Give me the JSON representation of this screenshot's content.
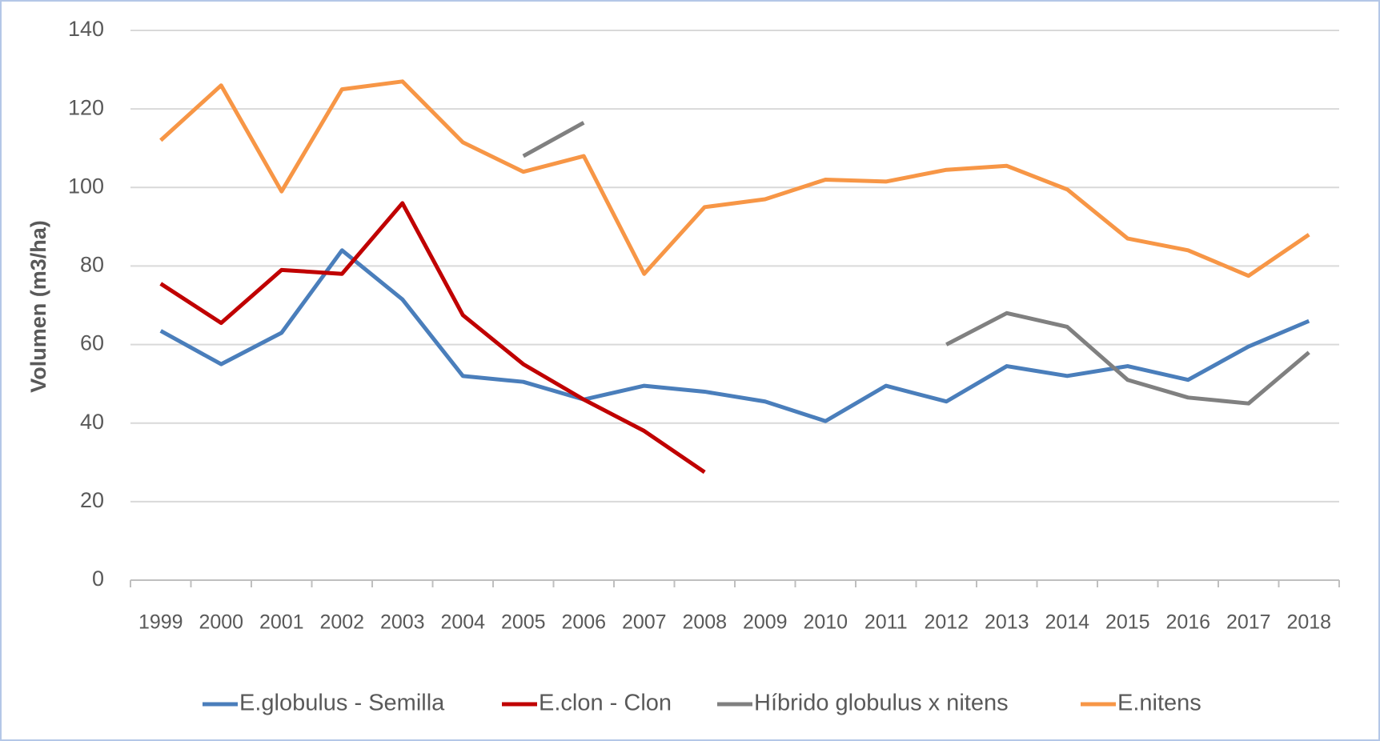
{
  "chart_data": {
    "type": "line",
    "y_label": "Volumen (m3/ha)",
    "categories": [
      "1999",
      "2000",
      "2001",
      "2002",
      "2003",
      "2004",
      "2005",
      "2006",
      "2007",
      "2008",
      "2009",
      "2010",
      "2011",
      "2012",
      "2013",
      "2014",
      "2015",
      "2016",
      "2017",
      "2018"
    ],
    "series": [
      {
        "name": "E.globulus - Semilla",
        "color": "#4a7ebb",
        "values": [
          63.5,
          55,
          63,
          84,
          71.5,
          52,
          50.5,
          46,
          49.5,
          48,
          45.5,
          40.5,
          49.5,
          45.5,
          54.5,
          52,
          54.5,
          51,
          59.5,
          66
        ]
      },
      {
        "name": "E.clon - Clon",
        "color": "#c00000",
        "values": [
          75.5,
          65.5,
          79,
          78,
          96,
          67.5,
          55,
          46,
          38,
          27.5,
          null,
          null,
          null,
          null,
          null,
          null,
          null,
          null,
          null,
          null
        ]
      },
      {
        "name": "Híbrido globulus x nitens",
        "color": "#808080",
        "values": [
          null,
          null,
          null,
          null,
          null,
          null,
          108,
          116.5,
          null,
          null,
          null,
          null,
          null,
          60,
          68,
          64.5,
          51,
          46.5,
          45,
          58
        ]
      },
      {
        "name": "E.nitens",
        "color": "#f79646",
        "values": [
          112,
          126,
          99,
          125,
          127,
          111.5,
          104,
          108,
          78,
          95,
          97,
          102,
          101.5,
          104.5,
          105.5,
          99.5,
          87,
          84,
          77.5,
          88
        ]
      }
    ],
    "ylim": [
      0,
      140
    ],
    "yticks": [
      0,
      20,
      40,
      60,
      80,
      100,
      120,
      140
    ],
    "grid": true,
    "legend": "bottom"
  }
}
